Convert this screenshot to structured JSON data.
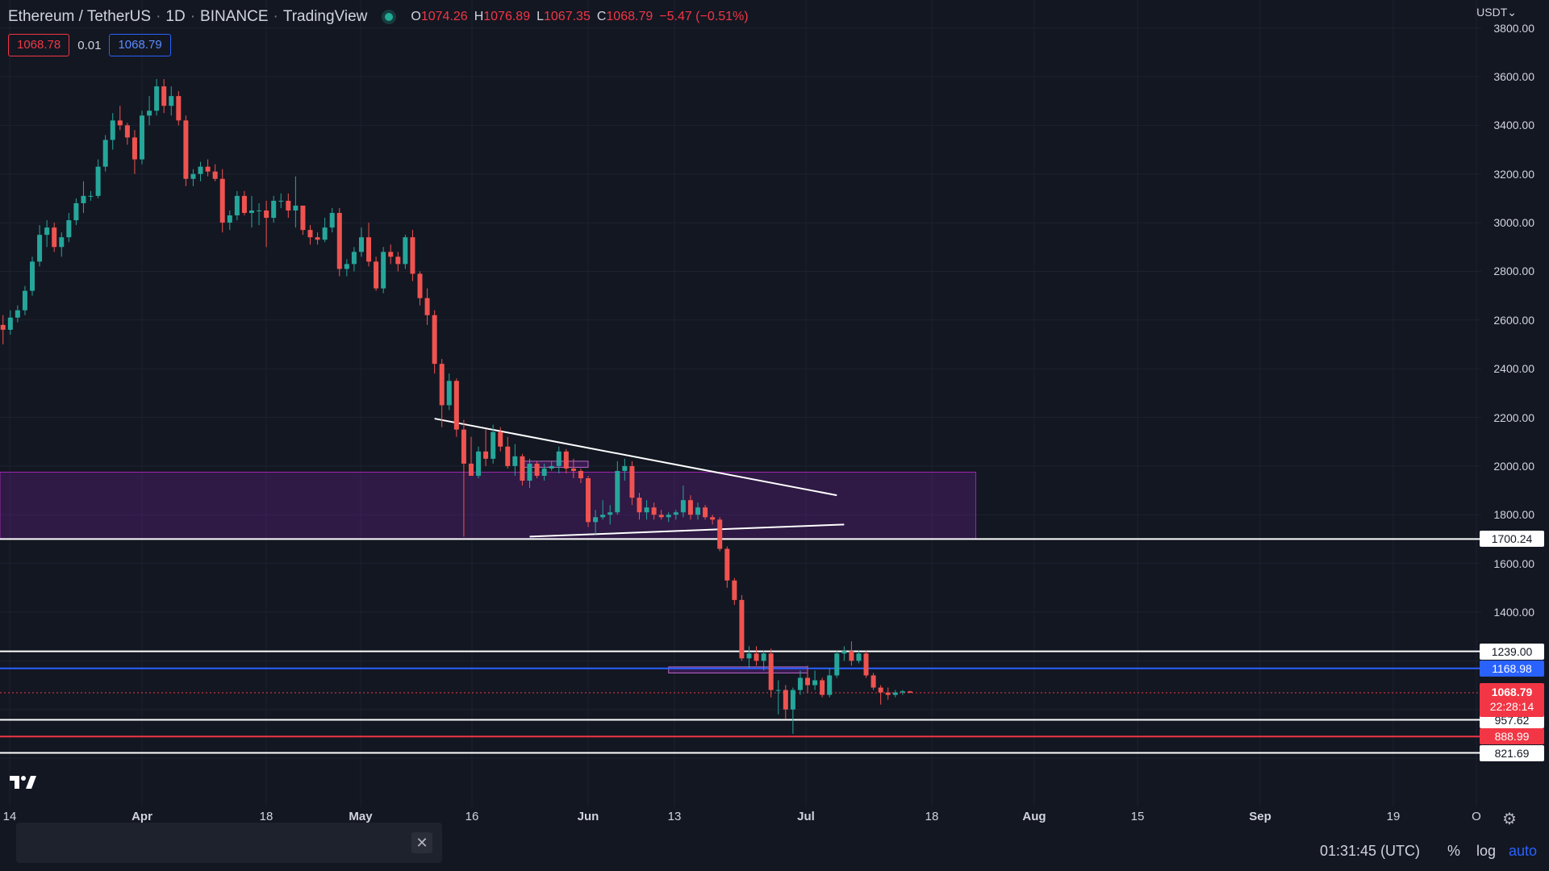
{
  "legend": {
    "symbol": "Ethereum / TetherUS",
    "interval": "1D",
    "exchange": "BINANCE",
    "platform": "TradingView",
    "o_label": "O",
    "o_value": "1074.26",
    "h_label": "H",
    "h_value": "1076.89",
    "l_label": "L",
    "l_value": "1067.35",
    "c_label": "C",
    "c_value": "1068.79",
    "change": "−5.47 (−0.51%)"
  },
  "trade": {
    "sell": "1068.78",
    "spread": "0.01",
    "buy": "1068.79"
  },
  "currency_selector": "USDT⌄",
  "colors": {
    "up": "#26a69a",
    "down": "#ef5350",
    "zone": "#7b1fa2",
    "accent": "#2962ff",
    "bg": "#131722"
  },
  "price_axis": [
    "3800.00",
    "3600.00",
    "3400.00",
    "3200.00",
    "3000.00",
    "2800.00",
    "2600.00",
    "2400.00",
    "2200.00",
    "2000.00",
    "1800.00",
    "1600.00",
    "1400.00"
  ],
  "levels": [
    {
      "label": "1700.24",
      "price": 1700.24,
      "style": "white"
    },
    {
      "label": "1239.00",
      "price": 1239.0,
      "style": "white"
    },
    {
      "label": "1168.98",
      "price": 1168.98,
      "style": "blue"
    },
    {
      "label": "957.62",
      "price": 957.62,
      "style": "white"
    },
    {
      "label": "888.99",
      "price": 888.99,
      "style": "red"
    },
    {
      "label": "821.69",
      "price": 821.69,
      "style": "white"
    }
  ],
  "current_price": {
    "price": "1068.79",
    "countdown": "22:28:14"
  },
  "time_axis": [
    "14",
    "Apr",
    "18",
    "May",
    "16",
    "Jun",
    "13",
    "Jul",
    "18",
    "Aug",
    "15",
    "Sep",
    "19",
    "O"
  ],
  "bottom": {
    "time": "01:31:45 (UTC)",
    "percent": "%",
    "log": "log",
    "auto": "auto"
  },
  "chart_data": {
    "type": "candlestick",
    "title": "Ethereum / TetherUS, 1D, BINANCE",
    "ylim": [
      740,
      3820
    ],
    "grid": true,
    "start_date": "2022-03-13",
    "ohlc": [
      [
        2580,
        2620,
        2500,
        2560
      ],
      [
        2560,
        2640,
        2540,
        2610
      ],
      [
        2610,
        2660,
        2590,
        2640
      ],
      [
        2640,
        2740,
        2620,
        2720
      ],
      [
        2720,
        2860,
        2700,
        2840
      ],
      [
        2840,
        2990,
        2820,
        2950
      ],
      [
        2950,
        3010,
        2900,
        2980
      ],
      [
        2980,
        3000,
        2880,
        2900
      ],
      [
        2900,
        2960,
        2860,
        2940
      ],
      [
        2940,
        3040,
        2920,
        3010
      ],
      [
        3010,
        3100,
        2990,
        3080
      ],
      [
        3080,
        3170,
        3040,
        3110
      ],
      [
        3110,
        3130,
        3090,
        3110
      ],
      [
        3110,
        3260,
        3100,
        3230
      ],
      [
        3230,
        3360,
        3210,
        3340
      ],
      [
        3340,
        3450,
        3300,
        3420
      ],
      [
        3420,
        3480,
        3380,
        3400
      ],
      [
        3400,
        3410,
        3320,
        3350
      ],
      [
        3350,
        3380,
        3200,
        3260
      ],
      [
        3260,
        3460,
        3240,
        3440
      ],
      [
        3440,
        3520,
        3400,
        3460
      ],
      [
        3460,
        3590,
        3440,
        3560
      ],
      [
        3560,
        3590,
        3450,
        3480
      ],
      [
        3480,
        3560,
        3440,
        3520
      ],
      [
        3520,
        3540,
        3400,
        3420
      ],
      [
        3420,
        3440,
        3150,
        3180
      ],
      [
        3180,
        3220,
        3150,
        3200
      ],
      [
        3200,
        3250,
        3170,
        3230
      ],
      [
        3230,
        3260,
        3190,
        3210
      ],
      [
        3210,
        3240,
        3170,
        3180
      ],
      [
        3180,
        3220,
        2960,
        3000
      ],
      [
        3000,
        3050,
        2970,
        3030
      ],
      [
        3030,
        3130,
        3010,
        3110
      ],
      [
        3110,
        3130,
        3030,
        3040
      ],
      [
        3040,
        3110,
        2980,
        3050
      ],
      [
        3050,
        3080,
        2990,
        3050
      ],
      [
        3050,
        3090,
        2900,
        3020
      ],
      [
        3020,
        3110,
        3000,
        3090
      ],
      [
        3090,
        3120,
        3060,
        3090
      ],
      [
        3090,
        3120,
        3020,
        3050
      ],
      [
        3050,
        3190,
        2980,
        3070
      ],
      [
        3070,
        3070,
        2950,
        2970
      ],
      [
        2970,
        2990,
        2910,
        2940
      ],
      [
        2940,
        2960,
        2910,
        2930
      ],
      [
        2930,
        3020,
        2920,
        2980
      ],
      [
        2980,
        3060,
        2960,
        3040
      ],
      [
        3040,
        3060,
        2780,
        2810
      ],
      [
        2810,
        2850,
        2780,
        2830
      ],
      [
        2830,
        2900,
        2800,
        2880
      ],
      [
        2880,
        2980,
        2860,
        2940
      ],
      [
        2940,
        3000,
        2820,
        2840
      ],
      [
        2840,
        2860,
        2720,
        2730
      ],
      [
        2730,
        2900,
        2710,
        2880
      ],
      [
        2880,
        2910,
        2830,
        2860
      ],
      [
        2860,
        2880,
        2800,
        2830
      ],
      [
        2830,
        2950,
        2810,
        2940
      ],
      [
        2940,
        2970,
        2760,
        2790
      ],
      [
        2790,
        2800,
        2660,
        2690
      ],
      [
        2690,
        2730,
        2580,
        2620
      ],
      [
        2620,
        2640,
        2380,
        2420
      ],
      [
        2420,
        2440,
        2160,
        2250
      ],
      [
        2250,
        2380,
        2230,
        2350
      ],
      [
        2350,
        2360,
        2120,
        2150
      ],
      [
        2150,
        2190,
        1710,
        2010
      ],
      [
        2010,
        2120,
        1960,
        1960
      ],
      [
        1960,
        2080,
        1950,
        2060
      ],
      [
        2060,
        2150,
        2000,
        2030
      ],
      [
        2030,
        2170,
        2010,
        2140
      ],
      [
        2140,
        2160,
        2060,
        2080
      ],
      [
        2080,
        2120,
        1990,
        2000
      ],
      [
        2000,
        2090,
        1960,
        2040
      ],
      [
        2040,
        2050,
        1920,
        1940
      ],
      [
        1940,
        2030,
        1910,
        2010
      ],
      [
        2010,
        2020,
        1950,
        1960
      ],
      [
        1960,
        2010,
        1940,
        1990
      ],
      [
        1990,
        2020,
        1980,
        2000
      ],
      [
        2000,
        2080,
        1970,
        2060
      ],
      [
        2060,
        2070,
        1970,
        1990
      ],
      [
        1990,
        2030,
        1950,
        1980
      ],
      [
        1980,
        1990,
        1930,
        1950
      ],
      [
        1950,
        1960,
        1750,
        1770
      ],
      [
        1770,
        1820,
        1720,
        1790
      ],
      [
        1790,
        1860,
        1780,
        1800
      ],
      [
        1800,
        1840,
        1760,
        1810
      ],
      [
        1810,
        2020,
        1800,
        1980
      ],
      [
        1980,
        2030,
        1940,
        2000
      ],
      [
        2000,
        2020,
        1840,
        1870
      ],
      [
        1870,
        1890,
        1780,
        1810
      ],
      [
        1810,
        1860,
        1780,
        1830
      ],
      [
        1830,
        1850,
        1780,
        1800
      ],
      [
        1800,
        1820,
        1780,
        1790
      ],
      [
        1790,
        1810,
        1770,
        1800
      ],
      [
        1800,
        1820,
        1780,
        1810
      ],
      [
        1810,
        1920,
        1790,
        1860
      ],
      [
        1860,
        1880,
        1780,
        1800
      ],
      [
        1800,
        1850,
        1780,
        1830
      ],
      [
        1830,
        1840,
        1780,
        1790
      ],
      [
        1790,
        1800,
        1760,
        1780
      ],
      [
        1780,
        1790,
        1650,
        1660
      ],
      [
        1660,
        1670,
        1500,
        1530
      ],
      [
        1530,
        1540,
        1430,
        1450
      ],
      [
        1450,
        1470,
        1200,
        1210
      ],
      [
        1210,
        1260,
        1170,
        1230
      ],
      [
        1230,
        1260,
        1180,
        1200
      ],
      [
        1200,
        1240,
        1160,
        1230
      ],
      [
        1230,
        1250,
        1050,
        1080
      ],
      [
        1080,
        1120,
        980,
        1080
      ],
      [
        1080,
        1100,
        960,
        1000
      ],
      [
        1000,
        1090,
        900,
        1080
      ],
      [
        1080,
        1160,
        1060,
        1130
      ],
      [
        1130,
        1180,
        1070,
        1100
      ],
      [
        1100,
        1160,
        1080,
        1120
      ],
      [
        1120,
        1130,
        1050,
        1060
      ],
      [
        1060,
        1170,
        1050,
        1140
      ],
      [
        1140,
        1240,
        1130,
        1230
      ],
      [
        1230,
        1260,
        1200,
        1240
      ],
      [
        1240,
        1280,
        1180,
        1200
      ],
      [
        1200,
        1240,
        1190,
        1230
      ],
      [
        1230,
        1240,
        1130,
        1140
      ],
      [
        1140,
        1150,
        1080,
        1090
      ],
      [
        1090,
        1100,
        1020,
        1070
      ],
      [
        1070,
        1090,
        1040,
        1060
      ],
      [
        1060,
        1080,
        1050,
        1070
      ],
      [
        1070,
        1080,
        1060,
        1075
      ],
      [
        1074.26,
        1076.89,
        1067.35,
        1068.79
      ]
    ],
    "zone": {
      "from_price": 1700,
      "to_price": 1975,
      "from_date": "2022-03-01",
      "to_date": "2022-07-24"
    },
    "small_zones": [
      {
        "from_price": 1995,
        "to_price": 2020,
        "from_date": "2022-05-23",
        "to_date": "2022-06-01"
      },
      {
        "from_price": 1150,
        "to_price": 1175,
        "from_date": "2022-06-12",
        "to_date": "2022-07-01"
      }
    ],
    "trendlines": [
      {
        "from_date": "2022-05-11",
        "from_price": 2195,
        "to_date": "2022-07-05",
        "to_price": 1880
      },
      {
        "from_date": "2022-05-24",
        "from_price": 1710,
        "to_date": "2022-07-06",
        "to_price": 1760
      }
    ]
  }
}
